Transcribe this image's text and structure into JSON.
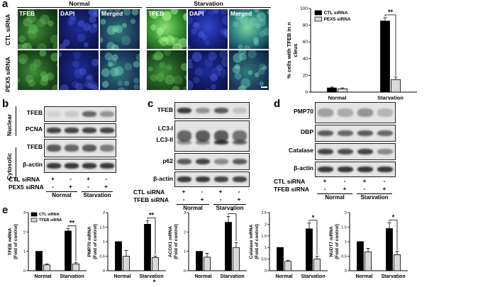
{
  "panel_a": {
    "label": "a",
    "group_normal": "Normal",
    "group_starvation": "Starvation",
    "channels": [
      "TFEB",
      "DAPI",
      "Merged"
    ],
    "rows": [
      "CTL siRNA",
      "PEX5 siRNA"
    ]
  },
  "panel_b": {
    "label": "b",
    "sections": [
      "Nuclear",
      "Cytosolic"
    ],
    "proteins": [
      "TFEB",
      "PCNA",
      "TFEB",
      "β-actin"
    ],
    "treat_labels": [
      "CTL siRNA",
      "PEX5 siRNA"
    ],
    "ctl_signs": [
      "+",
      "-",
      "+",
      "-"
    ],
    "pex5_signs": [
      "-",
      "+",
      "-",
      "+"
    ],
    "groups": [
      "Normal",
      "Starvation"
    ]
  },
  "panel_c": {
    "label": "c",
    "proteins": [
      "TFEB",
      "LC3-I",
      "LC3-II",
      "p62",
      "β-actin"
    ],
    "treat_labels": [
      "CTL siRNA",
      "TFEB siRNA"
    ],
    "ctl_signs": [
      "+",
      "-",
      "+",
      "-"
    ],
    "tfeb_signs": [
      "-",
      "+",
      "-",
      "+"
    ],
    "groups": [
      "Normal",
      "Starvation"
    ]
  },
  "panel_d": {
    "label": "d",
    "proteins": [
      "PMP70",
      "DBP",
      "Catalase",
      "β-actin"
    ],
    "treat_labels": [
      "CTL siRNA",
      "TFEB siRNA"
    ],
    "ctl_signs": [
      "+",
      "-",
      "+",
      "-"
    ],
    "tfeb_signs": [
      "-",
      "+",
      "-",
      "+"
    ],
    "groups": [
      "Normal",
      "Starvation"
    ]
  },
  "panel_e_label": "e",
  "chart_data": [
    {
      "type": "bar",
      "panel": "a",
      "categories": [
        "Normal",
        "Starvation"
      ],
      "series": [
        {
          "name": "CTL siRNA",
          "values": [
            5,
            85
          ],
          "errors": [
            1,
            4
          ],
          "color": "#000000"
        },
        {
          "name": "PEX5 siRNA",
          "values": [
            4,
            15
          ],
          "errors": [
            1,
            3
          ],
          "color": "#d9d9d9"
        }
      ],
      "ylabel": "% cells with TFEB in nucleus",
      "ylim": [
        0,
        100
      ],
      "yticks": [
        0,
        20,
        40,
        60,
        80,
        100
      ],
      "significance": [
        {
          "category": "Starvation",
          "label": "**"
        }
      ],
      "legend": "top-left"
    },
    {
      "type": "bar",
      "categories": [
        "Normal",
        "Starvation"
      ],
      "series": [
        {
          "name": "CTL siRNA",
          "values": [
            1.0,
            2.05
          ],
          "errors": [
            0,
            0.12
          ],
          "color": "#000000"
        },
        {
          "name": "TFEB siRNA",
          "values": [
            0.3,
            0.35
          ],
          "errors": [
            0.05,
            0.08
          ],
          "color": "#d9d9d9"
        }
      ],
      "ylabel": "TFEB mRNA (Fold of control)",
      "ylim": [
        0,
        3
      ],
      "yticks": [
        0,
        1,
        2,
        3
      ],
      "significance": [
        {
          "category": "Starvation",
          "label": "**"
        }
      ],
      "legend": "top-left"
    },
    {
      "type": "bar",
      "categories": [
        "Normal",
        "Starvation"
      ],
      "series": [
        {
          "name": "CTL siRNA",
          "values": [
            1.0,
            1.6
          ],
          "errors": [
            0,
            0.12
          ],
          "color": "#000000"
        },
        {
          "name": "TFEB siRNA",
          "values": [
            0.5,
            0.45
          ],
          "errors": [
            0.2,
            0.05
          ],
          "color": "#d9d9d9"
        }
      ],
      "ylabel": "PMP70 mRNA (Fold of control)",
      "ylim": [
        0,
        2
      ],
      "yticks": [
        0,
        0.5,
        1,
        1.5,
        2
      ],
      "significance": [
        {
          "category": "Starvation",
          "label": "**"
        }
      ],
      "extra_mark": "*"
    },
    {
      "type": "bar",
      "categories": [
        "Normal",
        "Starvation"
      ],
      "series": [
        {
          "name": "CTL siRNA",
          "values": [
            1.0,
            2.5
          ],
          "errors": [
            0,
            0.3
          ],
          "color": "#000000"
        },
        {
          "name": "TFEB siRNA",
          "values": [
            0.7,
            1.2
          ],
          "errors": [
            0.2,
            0.25
          ],
          "color": "#d9d9d9"
        }
      ],
      "ylabel": "ACOX1 mRNA (Fold of control)",
      "ylim": [
        0,
        3
      ],
      "yticks": [
        0,
        1,
        2,
        3
      ],
      "significance": [
        {
          "category": "Starvation",
          "label": "*"
        }
      ]
    },
    {
      "type": "bar",
      "categories": [
        "Normal",
        "Starvation"
      ],
      "series": [
        {
          "name": "CTL siRNA",
          "values": [
            1.0,
            1.8
          ],
          "errors": [
            0,
            0.25
          ],
          "color": "#000000"
        },
        {
          "name": "TFEB siRNA",
          "values": [
            0.4,
            0.5
          ],
          "errors": [
            0.05,
            0.12
          ],
          "color": "#d9d9d9"
        }
      ],
      "ylabel": "Catalase mRNA (Fold of control)",
      "ylim": [
        0,
        2.5
      ],
      "yticks": [
        0,
        0.5,
        1,
        1.5,
        2,
        2.5
      ],
      "significance": [
        {
          "category": "Starvation",
          "label": "*"
        }
      ]
    },
    {
      "type": "bar",
      "categories": [
        "Normal",
        "Starvation"
      ],
      "series": [
        {
          "name": "CTL siRNA",
          "values": [
            1.0,
            1.45
          ],
          "errors": [
            0,
            0.2
          ],
          "color": "#000000"
        },
        {
          "name": "TFEB siRNA",
          "values": [
            0.65,
            0.55
          ],
          "errors": [
            0.12,
            0.12
          ],
          "color": "#d9d9d9"
        }
      ],
      "ylabel": "NUDT7 mRNA (Fold of control)",
      "ylim": [
        0,
        2
      ],
      "yticks": [
        0,
        0.5,
        1,
        1.5,
        2
      ],
      "significance": [
        {
          "category": "Starvation",
          "label": "*"
        }
      ]
    }
  ]
}
